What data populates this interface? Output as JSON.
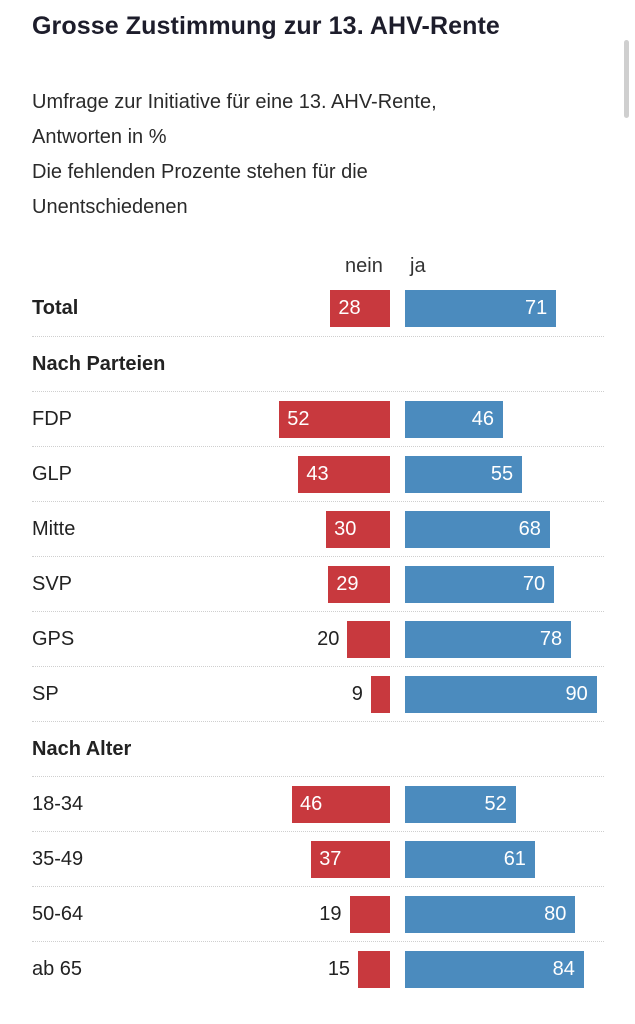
{
  "title": "Grosse Zustimmung zur 13. AHV-Rente",
  "subtitle": [
    "Umfrage zur Initiative für eine 13. AHV-Rente,",
    "Antworten in %",
    "Die fehlenden Prozente stehen für die",
    "Unentschiedenen"
  ],
  "column_headers": {
    "nein": "nein",
    "ja": "ja"
  },
  "colors": {
    "nein": "#c8393e",
    "ja": "#4b8bbe"
  },
  "chart_data": {
    "type": "bar",
    "orientation": "horizontal-diverging",
    "title": "Grosse Zustimmung zur 13. AHV-Rente",
    "unit": "%",
    "series": [
      {
        "name": "nein",
        "color": "#c8393e"
      },
      {
        "name": "ja",
        "color": "#4b8bbe"
      }
    ],
    "rows": [
      {
        "kind": "total",
        "label": "Total",
        "nein": 28,
        "ja": 71
      },
      {
        "kind": "section",
        "label": "Nach Parteien"
      },
      {
        "kind": "item",
        "label": "FDP",
        "nein": 52,
        "ja": 46
      },
      {
        "kind": "item",
        "label": "GLP",
        "nein": 43,
        "ja": 55
      },
      {
        "kind": "item",
        "label": "Mitte",
        "nein": 30,
        "ja": 68
      },
      {
        "kind": "item",
        "label": "SVP",
        "nein": 29,
        "ja": 70
      },
      {
        "kind": "item",
        "label": "GPS",
        "nein": 20,
        "ja": 78
      },
      {
        "kind": "item",
        "label": "SP",
        "nein": 9,
        "ja": 90
      },
      {
        "kind": "section",
        "label": "Nach Alter"
      },
      {
        "kind": "item",
        "label": "18-34",
        "nein": 46,
        "ja": 52
      },
      {
        "kind": "item",
        "label": "35-49",
        "nein": 37,
        "ja": 61
      },
      {
        "kind": "item",
        "label": "50-64",
        "nein": 19,
        "ja": 80
      },
      {
        "kind": "item",
        "label": "ab 65",
        "nein": 15,
        "ja": 84
      }
    ]
  }
}
